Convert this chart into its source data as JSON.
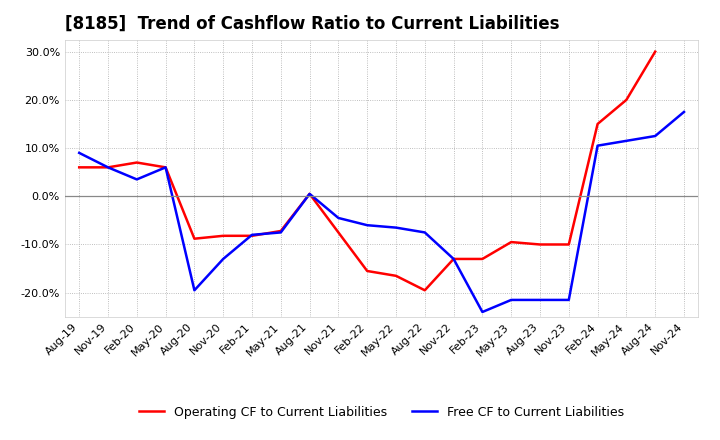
{
  "title": "[8185]  Trend of Cashflow Ratio to Current Liabilities",
  "x_labels": [
    "Aug-19",
    "Nov-19",
    "Feb-20",
    "May-20",
    "Aug-20",
    "Nov-20",
    "Feb-21",
    "May-21",
    "Aug-21",
    "Nov-21",
    "Feb-22",
    "May-22",
    "Aug-22",
    "Nov-22",
    "Feb-23",
    "May-23",
    "Aug-23",
    "Nov-23",
    "Feb-24",
    "May-24",
    "Aug-24",
    "Nov-24"
  ],
  "operating_cf": [
    0.06,
    0.06,
    0.07,
    0.06,
    -0.088,
    -0.082,
    -0.082,
    -0.072,
    0.005,
    -0.075,
    -0.155,
    -0.165,
    -0.195,
    -0.13,
    -0.13,
    -0.095,
    -0.1,
    -0.1,
    0.15,
    0.2,
    0.3,
    null
  ],
  "free_cf": [
    0.09,
    0.06,
    0.035,
    0.06,
    -0.195,
    -0.13,
    -0.08,
    -0.075,
    0.005,
    -0.045,
    -0.06,
    -0.065,
    -0.075,
    -0.13,
    -0.24,
    -0.215,
    -0.215,
    -0.215,
    0.105,
    0.115,
    0.125,
    0.175
  ],
  "ylim": [
    -0.25,
    0.325
  ],
  "yticks": [
    -0.2,
    -0.1,
    0.0,
    0.1,
    0.2,
    0.3
  ],
  "operating_color": "#FF0000",
  "free_color": "#0000FF",
  "background_color": "#FFFFFF",
  "grid_color": "#AAAAAA",
  "zero_line_color": "#888888",
  "title_fontsize": 12,
  "tick_fontsize": 8,
  "legend_fontsize": 9
}
